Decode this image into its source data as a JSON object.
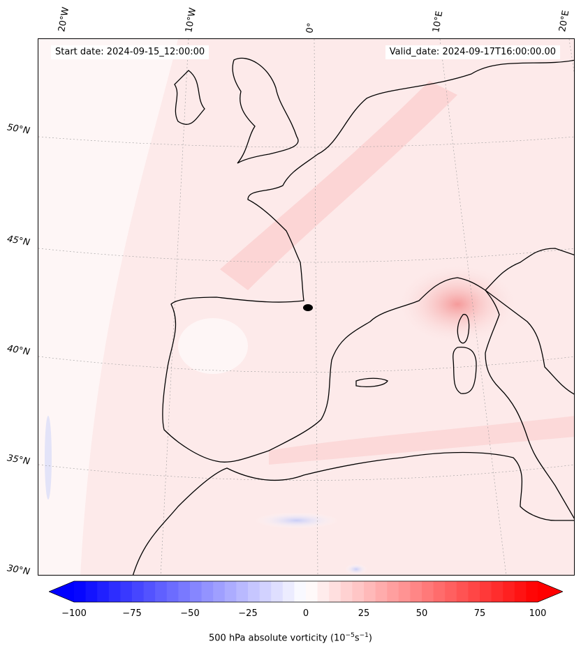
{
  "map": {
    "start_date": "Start date: 2024-09-15_12:00:00",
    "valid_date": "Valid_date: 2024-09-17T16:00:00.00",
    "lon_labels": [
      "20°W",
      "10°W",
      "0°",
      "10°E",
      "20°E"
    ],
    "lat_labels": [
      "50°N",
      "45°N",
      "40°N",
      "35°N",
      "30°N"
    ]
  },
  "colorbar": {
    "ticks": [
      "−100",
      "−75",
      "−50",
      "−25",
      "0",
      "25",
      "50",
      "75",
      "100"
    ],
    "label_main": "500 hPa absolute vorticity (10",
    "label_exp1": "−5",
    "label_mid": "s",
    "label_exp2": "−1",
    "label_end": ")",
    "min": -100,
    "max": 100
  },
  "colors": {
    "neg_max": "#0000ff",
    "pos_max": "#ff0000",
    "land_outline": "#000000"
  }
}
